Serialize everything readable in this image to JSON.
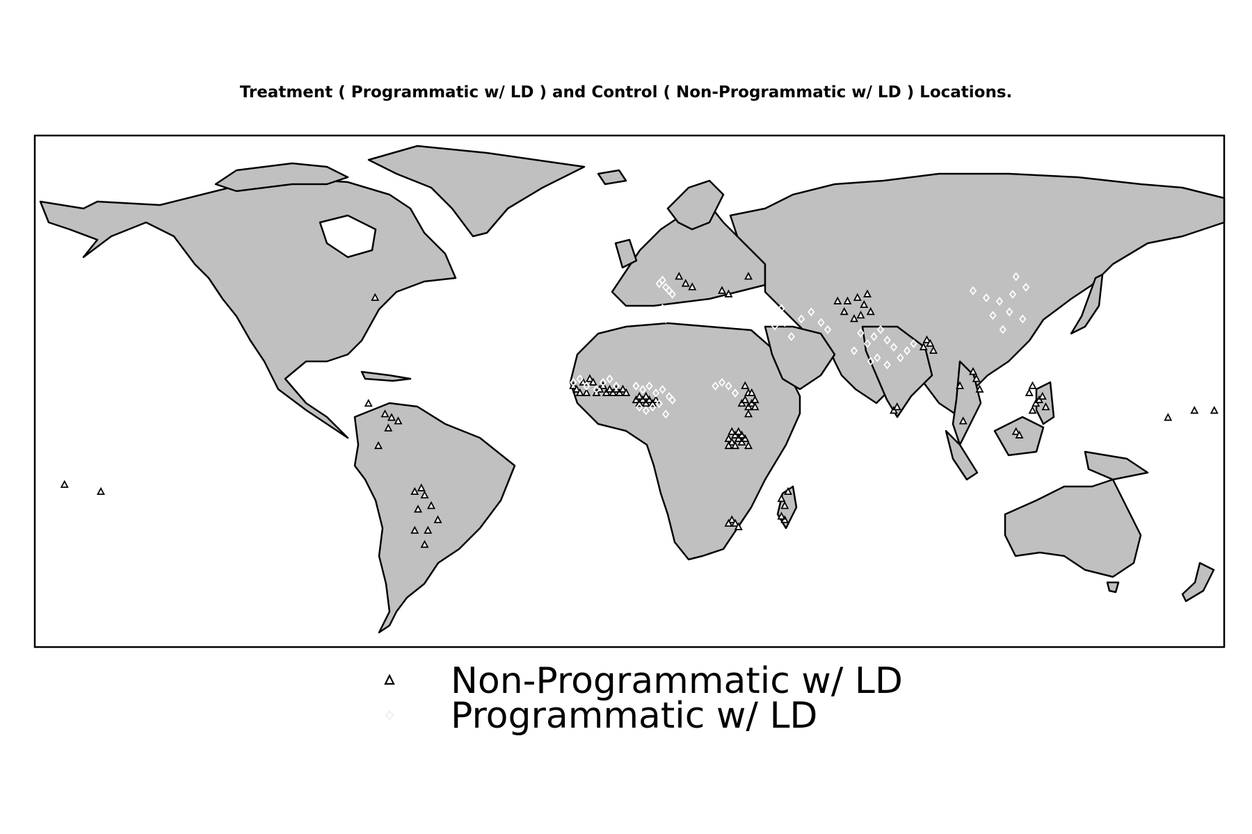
{
  "title": "Treatment ( Programmatic w/ LD ) and Control ( Non-Programmatic w/ LD ) Locations.",
  "colors": {
    "land": "#c0c0c0",
    "border": "#000000",
    "frame": "#000000",
    "treatment_marker": "#ffffff",
    "control_marker": "#000000"
  },
  "map": {
    "projection": "equirectangular",
    "extent": {
      "lon": [
        -180,
        180
      ],
      "lat": [
        -60,
        85
      ]
    }
  },
  "legend": {
    "entries": [
      {
        "label": "Non-Programmatic w/ LD",
        "marker": "triangle"
      },
      {
        "label": "Programmatic w/ LD",
        "marker": "diamond"
      }
    ]
  },
  "chart_data": {
    "type": "scatter",
    "title": "Treatment ( Programmatic w/ LD ) and Control ( Non-Programmatic w/ LD ) Locations.",
    "x_label": "",
    "y_label": "",
    "series": [
      {
        "name": "Non-Programmatic w/ LD",
        "marker": "triangle",
        "points": [
          [
            -77,
            39
          ],
          [
            -79,
            9
          ],
          [
            -74,
            6
          ],
          [
            -72,
            5
          ],
          [
            -70,
            4
          ],
          [
            -73,
            2
          ],
          [
            -76,
            -3
          ],
          [
            -65,
            -16
          ],
          [
            -63,
            -15
          ],
          [
            -62,
            -17
          ],
          [
            -60,
            -20
          ],
          [
            -64,
            -21
          ],
          [
            -58,
            -24
          ],
          [
            -61,
            -27
          ],
          [
            -65,
            -27
          ],
          [
            -62,
            -31
          ],
          [
            -171,
            -14
          ],
          [
            -160,
            -16
          ],
          [
            -17,
            14
          ],
          [
            -16,
            13
          ],
          [
            -15,
            12
          ],
          [
            -13,
            12
          ],
          [
            -12,
            16
          ],
          [
            -11,
            15
          ],
          [
            -8,
            14
          ],
          [
            -7,
            12
          ],
          [
            -6,
            13
          ],
          [
            -5,
            12
          ],
          [
            -4,
            13
          ],
          [
            -3,
            12
          ],
          [
            -2,
            13
          ],
          [
            -1,
            12
          ],
          [
            -9,
            13
          ],
          [
            -10,
            12
          ],
          [
            -14,
            15
          ],
          [
            2,
            10
          ],
          [
            3,
            9
          ],
          [
            4,
            10
          ],
          [
            5,
            9
          ],
          [
            6,
            10
          ],
          [
            7,
            9
          ],
          [
            8,
            10
          ],
          [
            5,
            11
          ],
          [
            3,
            11
          ],
          [
            34,
            9
          ],
          [
            35,
            10
          ],
          [
            36,
            8
          ],
          [
            37,
            9
          ],
          [
            38,
            10
          ],
          [
            36,
            12
          ],
          [
            35,
            14
          ],
          [
            37,
            12
          ],
          [
            38,
            8
          ],
          [
            36,
            6
          ],
          [
            30,
            -1
          ],
          [
            31,
            -2
          ],
          [
            32,
            0
          ],
          [
            33,
            -1
          ],
          [
            34,
            -2
          ],
          [
            35,
            -1
          ],
          [
            36,
            -3
          ],
          [
            30,
            -3
          ],
          [
            32,
            -3
          ],
          [
            34,
            0
          ],
          [
            31,
            1
          ],
          [
            33,
            1
          ],
          [
            31,
            -24
          ],
          [
            32,
            -25
          ],
          [
            30,
            -25
          ],
          [
            33,
            -26
          ],
          [
            46,
            -18
          ],
          [
            47,
            -20
          ],
          [
            47,
            -24
          ],
          [
            48,
            -16
          ],
          [
            46,
            -23
          ],
          [
            36,
            45
          ],
          [
            28,
            41
          ],
          [
            30,
            40
          ],
          [
            17,
            43
          ],
          [
            19,
            42
          ],
          [
            15,
            45
          ],
          [
            63,
            38
          ],
          [
            66,
            38
          ],
          [
            69,
            39
          ],
          [
            72,
            40
          ],
          [
            70,
            34
          ],
          [
            68,
            33
          ],
          [
            65,
            35
          ],
          [
            71,
            37
          ],
          [
            73,
            35
          ],
          [
            90,
            27
          ],
          [
            91,
            26
          ],
          [
            92,
            24
          ],
          [
            89,
            25
          ],
          [
            104,
            18
          ],
          [
            105,
            16
          ],
          [
            106,
            13
          ],
          [
            100,
            14
          ],
          [
            101,
            4
          ],
          [
            122,
            7
          ],
          [
            123,
            9
          ],
          [
            124,
            10
          ],
          [
            125,
            11
          ],
          [
            126,
            8
          ],
          [
            121,
            12
          ],
          [
            122,
            14
          ],
          [
            117,
            1
          ],
          [
            118,
            0
          ],
          [
            163,
            5
          ],
          [
            171,
            7
          ],
          [
            177,
            7
          ],
          [
            80,
            7
          ],
          [
            81,
            8
          ]
        ]
      },
      {
        "name": "Programmatic w/ LD",
        "marker": "diamond",
        "points": [
          [
            -17,
            15
          ],
          [
            -15,
            16
          ],
          [
            -13,
            14
          ],
          [
            -10,
            13
          ],
          [
            -8,
            15
          ],
          [
            -6,
            16
          ],
          [
            -4,
            14
          ],
          [
            2,
            14
          ],
          [
            4,
            13
          ],
          [
            6,
            14
          ],
          [
            8,
            12
          ],
          [
            10,
            13
          ],
          [
            12,
            11
          ],
          [
            9,
            9
          ],
          [
            7,
            8
          ],
          [
            5,
            7
          ],
          [
            3,
            8
          ],
          [
            11,
            6
          ],
          [
            13,
            10
          ],
          [
            9,
            43
          ],
          [
            10,
            44
          ],
          [
            11,
            42
          ],
          [
            12,
            41
          ],
          [
            13,
            40
          ],
          [
            10,
            36
          ],
          [
            10,
            34
          ],
          [
            11,
            33
          ],
          [
            9,
            35
          ],
          [
            -8,
            36
          ],
          [
            -6,
            35
          ],
          [
            26,
            14
          ],
          [
            28,
            15
          ],
          [
            30,
            14
          ],
          [
            32,
            12
          ],
          [
            44,
            31
          ],
          [
            47,
            32
          ],
          [
            52,
            33
          ],
          [
            55,
            35
          ],
          [
            46,
            36
          ],
          [
            49,
            28
          ],
          [
            68,
            24
          ],
          [
            72,
            26
          ],
          [
            74,
            28
          ],
          [
            76,
            30
          ],
          [
            78,
            27
          ],
          [
            80,
            25
          ],
          [
            82,
            22
          ],
          [
            84,
            24
          ],
          [
            86,
            26
          ],
          [
            78,
            20
          ],
          [
            75,
            22
          ],
          [
            73,
            21
          ],
          [
            104,
            41
          ],
          [
            108,
            39
          ],
          [
            112,
            38
          ],
          [
            115,
            35
          ],
          [
            116,
            40
          ],
          [
            110,
            34
          ],
          [
            113,
            30
          ],
          [
            119,
            33
          ],
          [
            120,
            42
          ],
          [
            117,
            45
          ],
          [
            58,
            32
          ],
          [
            60,
            30
          ],
          [
            70,
            29
          ]
        ]
      }
    ],
    "x_range": [
      -180,
      180
    ],
    "y_range": [
      -60,
      85
    ],
    "grid": false,
    "legend_position": "bottom-center"
  }
}
